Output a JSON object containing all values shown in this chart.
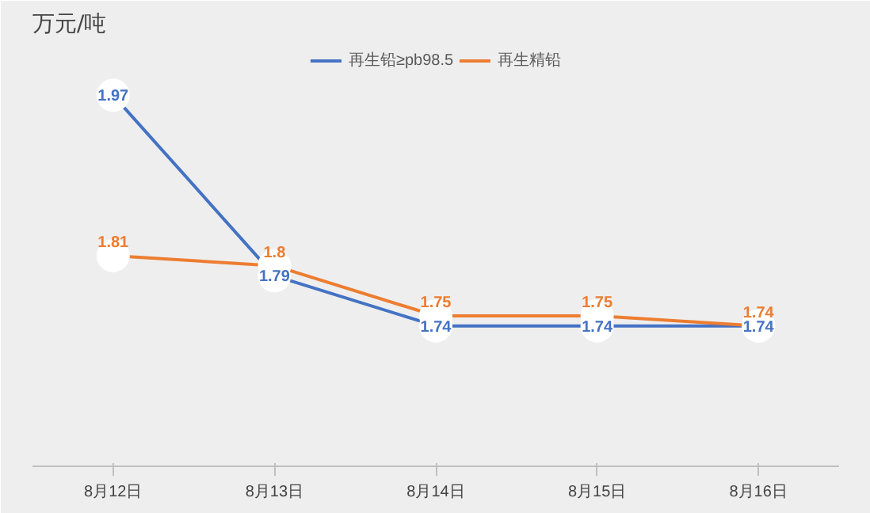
{
  "chart_data": {
    "type": "line",
    "title": "万元/吨",
    "categories": [
      "8月12日",
      "8月13日",
      "8月14日",
      "8月15日",
      "8月16日"
    ],
    "series": [
      {
        "name": "再生铅≥pb98.5",
        "color": "#4472c4",
        "values": [
          1.97,
          1.79,
          1.74,
          1.74,
          1.74
        ]
      },
      {
        "name": "再生精铅",
        "color": "#ed7d31",
        "values": [
          1.81,
          1.8,
          1.75,
          1.75,
          1.74
        ]
      }
    ],
    "ylim": [
      1.6,
      2.02
    ],
    "tick_labels": "x",
    "data_labels": true,
    "marker": "circle",
    "legend": "top",
    "grid": false
  }
}
